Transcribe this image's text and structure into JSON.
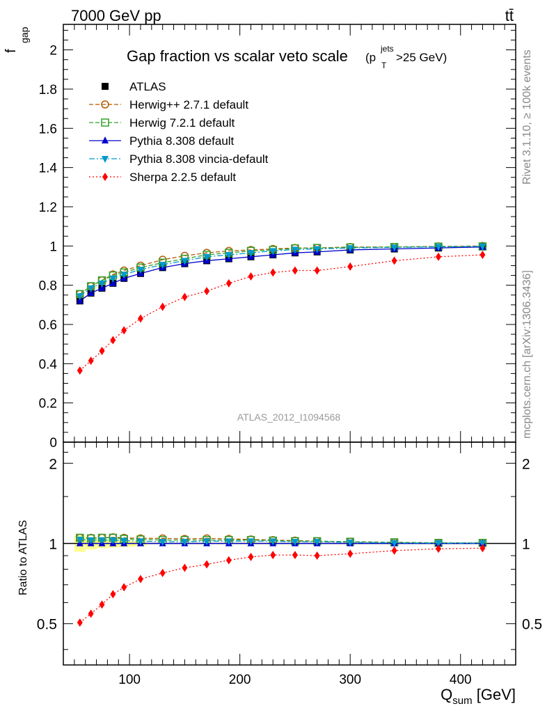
{
  "header": {
    "energy": "7000 GeV pp",
    "process": "tt̄",
    "rivet": "Rivet 3.1.10, ≥ 100k events",
    "mcplots": "mcplots.cern.ch [arXiv:1306.3436]",
    "analysis": "ATLAS_2012_I1094568"
  },
  "main_plot": {
    "title_main": "Gap fraction vs scalar veto scale",
    "title_paren_open": "(p",
    "title_sub": "T",
    "title_sup": "jets",
    "title_rest": ">25 GeV)",
    "ylabel_main": "f",
    "ylabel_sub": "gap",
    "yticks": [
      "0",
      "0.2",
      "0.4",
      "0.6",
      "0.8",
      "1",
      "1.2",
      "1.4",
      "1.6",
      "1.8",
      "2"
    ]
  },
  "ratio_plot": {
    "ylabel": "Ratio to ATLAS",
    "yticks": [
      "0.5",
      "1",
      "2"
    ]
  },
  "xaxis": {
    "ticks": [
      "100",
      "200",
      "300",
      "400"
    ],
    "label_main": "Q",
    "label_sub": "sum",
    "label_unit": " [GeV]"
  },
  "chart_data": {
    "type": "line",
    "x": [
      55,
      65,
      75,
      85,
      95,
      110,
      130,
      150,
      170,
      190,
      210,
      230,
      250,
      270,
      300,
      340,
      380,
      420
    ],
    "xlim": [
      40,
      450
    ],
    "ylim": [
      0,
      2.13
    ],
    "ratio_ylim": [
      0.35,
      2.4
    ],
    "ratio_scale": "log",
    "grid": false,
    "legend_position": "top-left",
    "series": [
      {
        "name": "ATLAS",
        "color": "#000000",
        "marker": "square-filled",
        "line": "none",
        "values": [
          0.72,
          0.76,
          0.785,
          0.81,
          0.835,
          0.86,
          0.89,
          0.91,
          0.925,
          0.935,
          0.945,
          0.955,
          0.965,
          0.97,
          0.98,
          0.985,
          0.99,
          0.995
        ],
        "ratio": [
          1,
          1,
          1,
          1,
          1,
          1,
          1,
          1,
          1,
          1,
          1,
          1,
          1,
          1,
          1,
          1,
          1,
          1
        ]
      },
      {
        "name": "Herwig++ 2.7.1 default",
        "color": "#b35900",
        "marker": "circle-open",
        "line": "dashed",
        "values": [
          0.755,
          0.795,
          0.825,
          0.855,
          0.875,
          0.9,
          0.93,
          0.95,
          0.965,
          0.975,
          0.98,
          0.985,
          0.99,
          0.99,
          0.995,
          0.995,
          0.998,
          1.0
        ],
        "ratio": [
          1.05,
          1.05,
          1.05,
          1.055,
          1.05,
          1.045,
          1.045,
          1.04,
          1.045,
          1.04,
          1.035,
          1.03,
          1.025,
          1.02,
          1.015,
          1.01,
          1.005,
          1.005
        ]
      },
      {
        "name": "Herwig 7.2.1 default",
        "color": "#33a02c",
        "marker": "square-open",
        "line": "dashed",
        "values": [
          0.755,
          0.795,
          0.825,
          0.85,
          0.865,
          0.89,
          0.915,
          0.935,
          0.955,
          0.965,
          0.975,
          0.98,
          0.988,
          0.99,
          0.993,
          0.995,
          0.997,
          0.998
        ],
        "ratio": [
          1.05,
          1.045,
          1.05,
          1.05,
          1.04,
          1.035,
          1.03,
          1.03,
          1.03,
          1.03,
          1.03,
          1.025,
          1.02,
          1.02,
          1.015,
          1.01,
          1.005,
          1.005
        ]
      },
      {
        "name": "Pythia 8.308 default",
        "color": "#0000cc",
        "marker": "triangle-up",
        "line": "solid",
        "values": [
          0.72,
          0.76,
          0.785,
          0.81,
          0.835,
          0.86,
          0.89,
          0.91,
          0.925,
          0.935,
          0.945,
          0.955,
          0.965,
          0.97,
          0.98,
          0.985,
          0.99,
          0.995
        ],
        "ratio": [
          1.0,
          1.0,
          1.0,
          1.0,
          1.0,
          1.0,
          1.0,
          1.0,
          1.0,
          1.0,
          1.0,
          1.0,
          1.0,
          1.0,
          1.0,
          1.0,
          1.0,
          1.0
        ]
      },
      {
        "name": "Pythia 8.308 vincia-default",
        "color": "#0099cc",
        "marker": "triangle-down",
        "line": "dashdot",
        "values": [
          0.745,
          0.785,
          0.81,
          0.835,
          0.855,
          0.88,
          0.905,
          0.925,
          0.945,
          0.955,
          0.965,
          0.975,
          0.982,
          0.985,
          0.99,
          0.993,
          0.996,
          0.998
        ],
        "ratio": [
          1.035,
          1.03,
          1.03,
          1.03,
          1.025,
          1.02,
          1.015,
          1.015,
          1.02,
          1.02,
          1.02,
          1.02,
          1.015,
          1.015,
          1.01,
          1.005,
          1.003,
          1.003
        ]
      },
      {
        "name": "Sherpa 2.2.5 default",
        "color": "#ff0000",
        "marker": "diamond",
        "line": "dotted",
        "values": [
          0.365,
          0.415,
          0.465,
          0.52,
          0.57,
          0.63,
          0.69,
          0.74,
          0.77,
          0.81,
          0.845,
          0.865,
          0.875,
          0.875,
          0.895,
          0.925,
          0.945,
          0.955
        ],
        "ratio": [
          0.505,
          0.545,
          0.59,
          0.645,
          0.685,
          0.735,
          0.775,
          0.81,
          0.835,
          0.865,
          0.89,
          0.905,
          0.905,
          0.9,
          0.915,
          0.94,
          0.955,
          0.96
        ]
      }
    ],
    "uncertainty_band": {
      "color": "#ffff66",
      "x": [
        55,
        65,
        75,
        85,
        95,
        110
      ],
      "lower": [
        0.93,
        0.95,
        0.96,
        0.965,
        0.97,
        0.975
      ],
      "upper": [
        1.07,
        1.05,
        1.04,
        1.035,
        1.03,
        1.025
      ]
    }
  }
}
